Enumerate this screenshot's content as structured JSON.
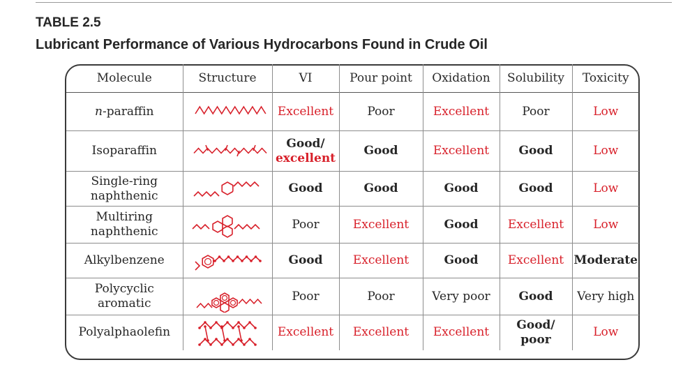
{
  "table": {
    "label": "TABLE 2.5",
    "title": "Lubricant Performance of Various Hydrocarbons Found in Crude Oil",
    "headers": [
      "Molecule",
      "Structure",
      "VI",
      "Pour point",
      "Oxidation",
      "Solubility",
      "Toxicity"
    ],
    "rows": [
      {
        "molecule": {
          "prefix": "n",
          "text": "-paraffin"
        },
        "structure_icon": "n-paraffin-chain-icon",
        "vi": "Excellent",
        "pour_point": "Poor",
        "oxidation": "Excellent",
        "solubility": "Poor",
        "toxicity": "Low"
      },
      {
        "molecule": {
          "line1": "Isoparaffin"
        },
        "structure_icon": "isoparaffin-branched-chain-icon",
        "vi": [
          "Good/",
          "excellent"
        ],
        "pour_point": "Good",
        "oxidation": "Excellent",
        "solubility": "Good",
        "toxicity": "Low"
      },
      {
        "molecule": {
          "line1": "Single-ring",
          "line2": "naphthenic"
        },
        "structure_icon": "single-ring-naphthenic-icon",
        "vi": "Good",
        "pour_point": "Good",
        "oxidation": "Good",
        "solubility": "Good",
        "toxicity": "Low"
      },
      {
        "molecule": {
          "line1": "Multiring",
          "line2": "naphthenic"
        },
        "structure_icon": "multiring-naphthenic-icon",
        "vi": "Poor",
        "pour_point": "Excellent",
        "oxidation": "Good",
        "solubility": "Excellent",
        "toxicity": "Low"
      },
      {
        "molecule": {
          "line1": "Alkylbenzene"
        },
        "structure_icon": "alkylbenzene-icon",
        "vi": "Good",
        "pour_point": "Excellent",
        "oxidation": "Good",
        "solubility": "Excellent",
        "toxicity": "Moderate"
      },
      {
        "molecule": {
          "line1": "Polycyclic",
          "line2": "aromatic"
        },
        "structure_icon": "polycyclic-aromatic-icon",
        "vi": "Poor",
        "pour_point": "Poor",
        "oxidation": "Very poor",
        "solubility": "Good",
        "toxicity": "Very high"
      },
      {
        "molecule": {
          "line1": "Polyalphaolefin"
        },
        "structure_icon": "polyalphaolefin-icon",
        "vi": "Excellent",
        "pour_point": "Excellent",
        "oxidation": "Excellent",
        "solubility": [
          "Good/",
          "poor"
        ],
        "toxicity": "Low"
      }
    ]
  },
  "colors": {
    "highlight_red": "#d8202a",
    "text_dark": "#262626",
    "rule_gray": "#8c8c8c"
  }
}
